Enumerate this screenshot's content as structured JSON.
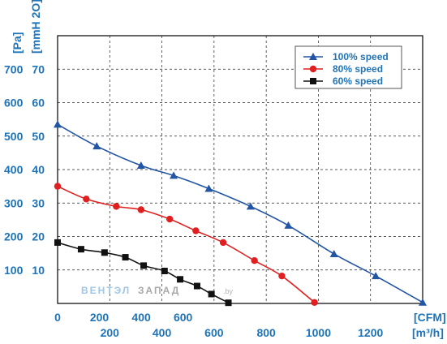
{
  "chart_data": {
    "type": "line",
    "title": "",
    "grid": true,
    "legend_position": "top-right",
    "y_axis": {
      "units_pa": "[Pa]",
      "units_mmh2o": "[mmH 2O]",
      "ticks_pa": [
        "100",
        "200",
        "300",
        "400",
        "500",
        "600",
        "700"
      ],
      "ticks_mmh2o": [
        "10",
        "20",
        "30",
        "40",
        "50",
        "60",
        "70"
      ],
      "ylim_pa": [
        0,
        800
      ]
    },
    "x_axis": {
      "units_cfm": "[CFM]",
      "units_m3h": "[m³/h]",
      "ticks_cfm": [
        "0",
        "200",
        "400",
        "600"
      ],
      "ticks_m3h": [
        "200",
        "400",
        "600",
        "800",
        "1000",
        "1200"
      ],
      "xlim_m3h": [
        0,
        1400
      ]
    },
    "series": [
      {
        "name": "100%  speed",
        "color": "#2255a4",
        "marker": "triangle",
        "x": [
          0,
          150,
          320,
          445,
          580,
          740,
          885,
          1060,
          1220,
          1400
        ],
        "y": [
          535,
          470,
          412,
          382,
          343,
          290,
          233,
          148,
          82,
          3
        ]
      },
      {
        "name": "80%  speed",
        "color": "#e02020",
        "marker": "circle",
        "x": [
          0,
          110,
          225,
          320,
          430,
          530,
          635,
          755,
          860,
          985
        ],
        "y": [
          350,
          312,
          290,
          280,
          252,
          217,
          182,
          128,
          82,
          3
        ]
      },
      {
        "name": "60%  speed",
        "color": "#111111",
        "marker": "square",
        "x": [
          0,
          90,
          180,
          260,
          330,
          410,
          470,
          535,
          590,
          655
        ],
        "y": [
          182,
          162,
          152,
          138,
          113,
          97,
          72,
          52,
          28,
          2
        ]
      }
    ]
  },
  "watermark": {
    "part1": "ВЕНТЭЛ",
    "part2": "ЗАПАД",
    "part3": ".by"
  }
}
